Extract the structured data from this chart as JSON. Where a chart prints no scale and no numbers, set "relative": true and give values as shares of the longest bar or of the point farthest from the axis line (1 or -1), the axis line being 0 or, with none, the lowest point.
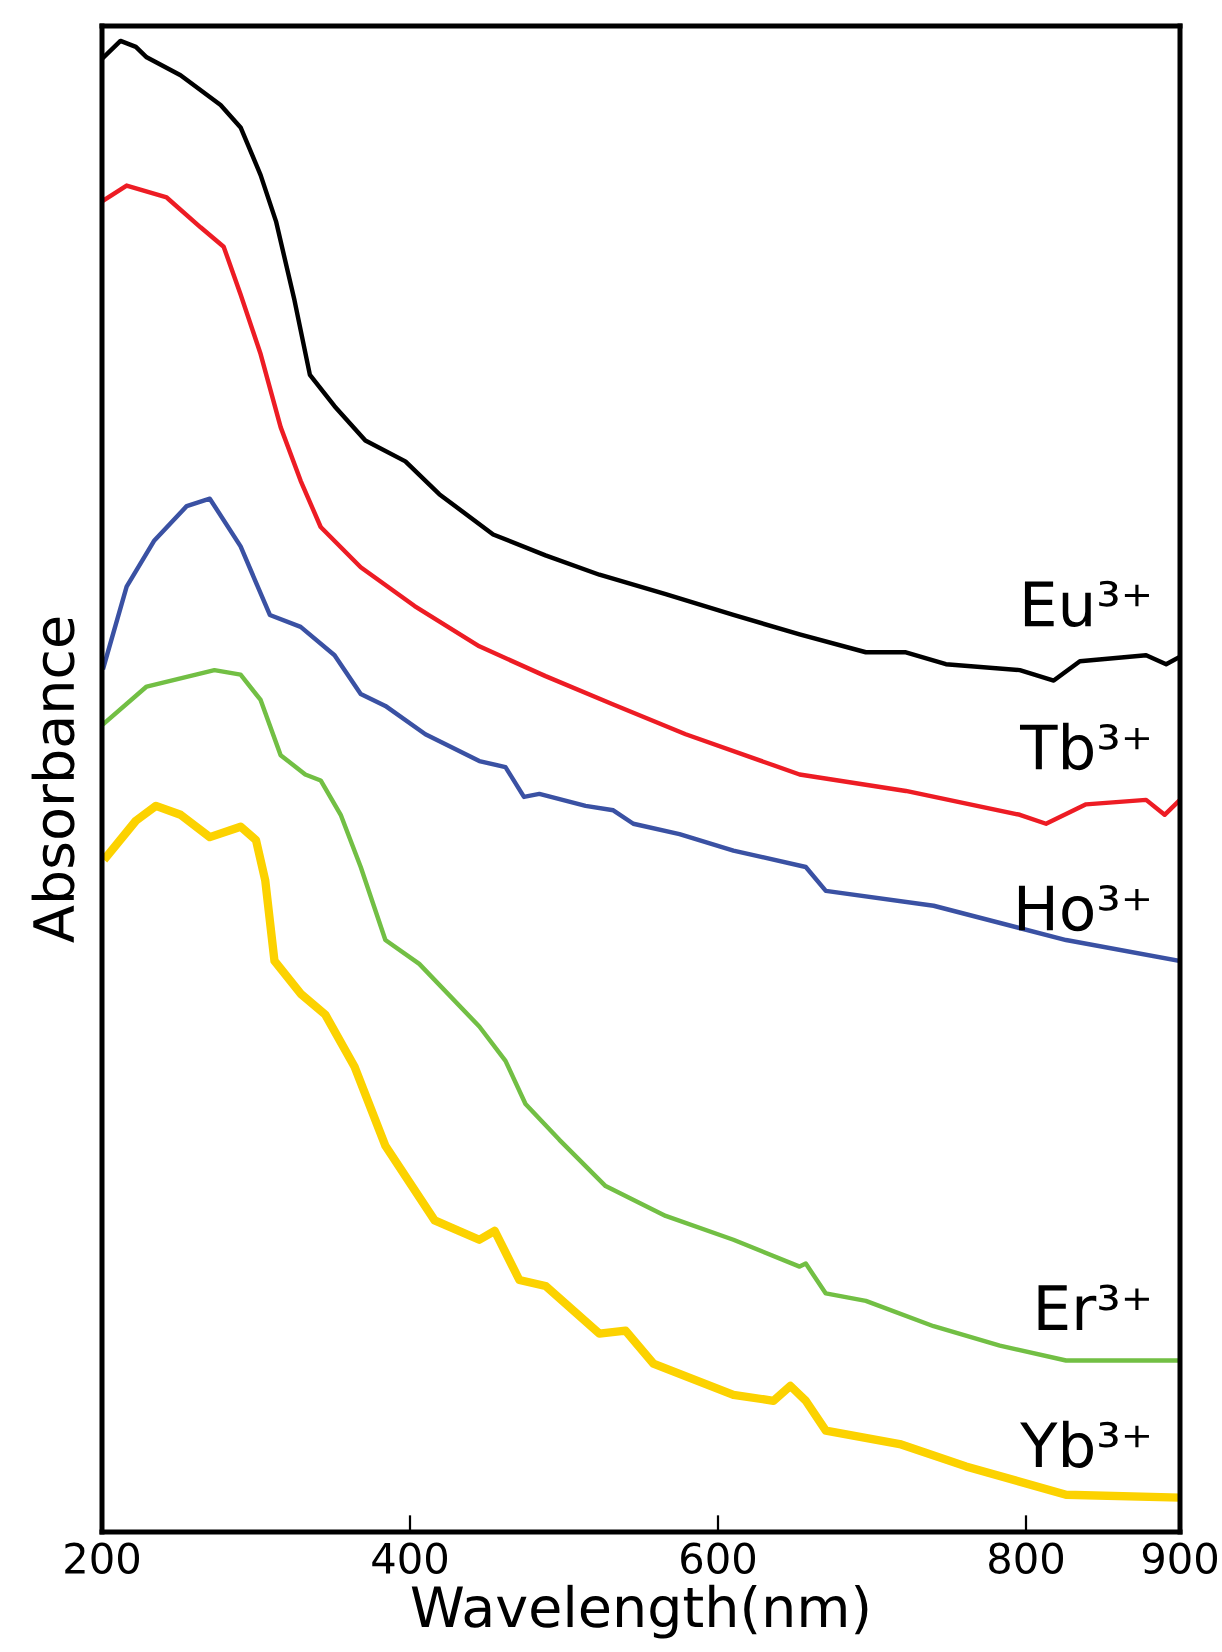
{
  "chart_data": {
    "type": "line",
    "relative": true,
    "xlabel": "Wavelength(nm)",
    "ylabel": "Absorbance",
    "xlim": [
      200,
      900
    ],
    "xticks": [
      200,
      400,
      600,
      800,
      900
    ],
    "tick_labels": "x",
    "grid": false,
    "legend": false,
    "marker": "none",
    "line_style": "solid",
    "series": [
      {
        "name": "Eu³⁺",
        "color": "#000000",
        "x": [
          201,
          212,
          222,
          229,
          251,
          277,
          290,
          303,
          313,
          325,
          335,
          351,
          371,
          397,
          419,
          454,
          488,
          523,
          566,
          610,
          653,
          696,
          722,
          748,
          796,
          818,
          835,
          878,
          891,
          900
        ],
        "values": [
          0.989,
          1.0,
          0.996,
          0.989,
          0.977,
          0.957,
          0.942,
          0.91,
          0.879,
          0.826,
          0.776,
          0.755,
          0.732,
          0.718,
          0.696,
          0.669,
          0.655,
          0.642,
          0.629,
          0.615,
          0.602,
          0.59,
          0.59,
          0.582,
          0.578,
          0.571,
          0.584,
          0.588,
          0.582,
          0.587
        ]
      },
      {
        "name": "Tb³⁺",
        "color": "#ed1c24",
        "x": [
          201,
          216,
          242,
          264,
          279,
          290,
          303,
          316,
          329,
          342,
          368,
          403,
          445,
          488,
          532,
          579,
          653,
          722,
          796,
          813,
          839,
          878,
          890,
          900
        ],
        "values": [
          0.893,
          0.903,
          0.895,
          0.875,
          0.862,
          0.83,
          0.79,
          0.741,
          0.705,
          0.674,
          0.647,
          0.621,
          0.594,
          0.574,
          0.555,
          0.535,
          0.508,
          0.497,
          0.481,
          0.475,
          0.488,
          0.491,
          0.481,
          0.491
        ]
      },
      {
        "name": "Ho³⁺",
        "color": "#3a51a3",
        "x": [
          201,
          216,
          234,
          255,
          270,
          290,
          309,
          329,
          351,
          368,
          384,
          410,
          445,
          462,
          474,
          484,
          514,
          532,
          545,
          575,
          610,
          657,
          670,
          740,
          826,
          900
        ],
        "values": [
          0.58,
          0.634,
          0.665,
          0.688,
          0.693,
          0.661,
          0.615,
          0.607,
          0.588,
          0.562,
          0.554,
          0.535,
          0.517,
          0.513,
          0.493,
          0.495,
          0.487,
          0.484,
          0.475,
          0.468,
          0.457,
          0.446,
          0.43,
          0.42,
          0.397,
          0.383
        ]
      },
      {
        "name": "Er³⁺",
        "color": "#72bf44",
        "x": [
          201,
          229,
          273,
          290,
          303,
          316,
          332,
          342,
          355,
          368,
          384,
          406,
          445,
          462,
          475,
          497,
          527,
          566,
          610,
          653,
          657,
          670,
          696,
          740,
          783,
          826,
          900
        ],
        "values": [
          0.542,
          0.567,
          0.578,
          0.575,
          0.558,
          0.521,
          0.508,
          0.504,
          0.481,
          0.446,
          0.397,
          0.381,
          0.339,
          0.316,
          0.287,
          0.263,
          0.232,
          0.212,
          0.196,
          0.178,
          0.18,
          0.16,
          0.155,
          0.138,
          0.125,
          0.115,
          0.115
        ]
      },
      {
        "name": "Yb³⁺",
        "color": "#fcd200",
        "x": [
          203,
          222,
          235,
          251,
          270,
          290,
          300,
          306,
          312,
          329,
          345,
          364,
          384,
          416,
          445,
          455,
          471,
          488,
          523,
          540,
          558,
          610,
          636,
          647,
          657,
          670,
          718,
          761,
          826,
          900
        ],
        "values": [
          0.453,
          0.477,
          0.487,
          0.481,
          0.466,
          0.473,
          0.464,
          0.437,
          0.383,
          0.361,
          0.347,
          0.312,
          0.259,
          0.209,
          0.196,
          0.202,
          0.169,
          0.165,
          0.133,
          0.135,
          0.113,
          0.092,
          0.088,
          0.098,
          0.088,
          0.068,
          0.059,
          0.044,
          0.025,
          0.023
        ]
      }
    ]
  }
}
